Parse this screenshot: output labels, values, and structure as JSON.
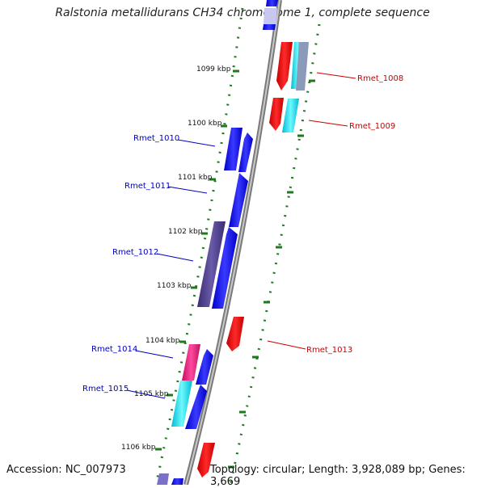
{
  "title": "Ralstonia metallidurans CH34 chromosome 1, complete sequence",
  "accession": "Accession: NC_007973",
  "topology": "Topology: circular; Length: 3,928,089 bp; Genes: 3,669",
  "colors": {
    "backbone": "#8c8c8c",
    "tick": "#1f7a1f",
    "forward_label": "#0000bb",
    "reverse_label": "#cc0000",
    "blue_gene": "#0a0af0",
    "red_gene": "#ee0000",
    "cyan_gene": "#00e5ee",
    "purple_gene": "#4a3a8a",
    "magenta_gene": "#e0177a"
  },
  "kbp_labels": [
    "1099 kbp",
    "1100 kbp",
    "1101 kbp",
    "1102 kbp",
    "1103 kbp",
    "1104 kbp",
    "1105 kbp",
    "1106 kbp"
  ],
  "gene_labels_left": [
    "Rmet_1010",
    "Rmet_1011",
    "Rmet_1012",
    "Rmet_1014",
    "Rmet_1015"
  ],
  "gene_labels_right": [
    "Rmet_1008",
    "Rmet_1009",
    "Rmet_1013"
  ]
}
